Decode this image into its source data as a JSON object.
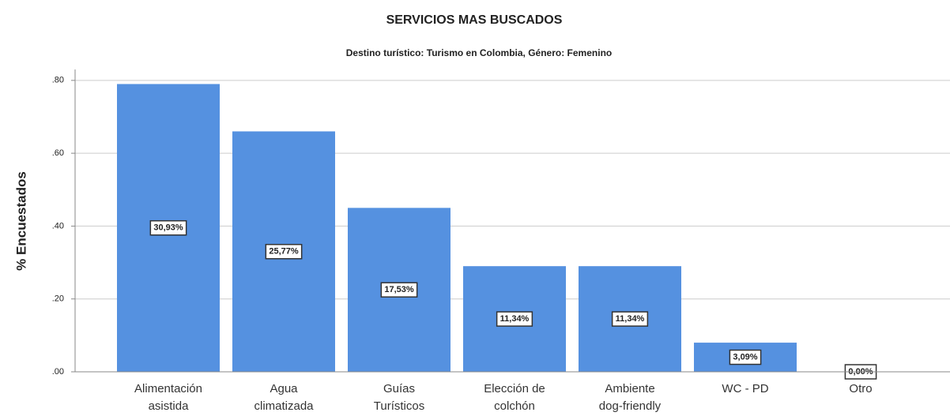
{
  "chart_data": {
    "type": "bar",
    "title": "SERVICIOS MAS BUSCADOS",
    "subtitle": "Destino turístico: Turismo en Colombia, Género: Femenino",
    "y_label": "% Encuestados",
    "categories": [
      [
        "Alimentación",
        "asistida"
      ],
      [
        "Agua",
        "climatizada"
      ],
      [
        "Guías",
        "Turísticos"
      ],
      [
        "Elección de",
        "colchón"
      ],
      [
        "Ambiente",
        "dog-friendly"
      ],
      [
        "WC - PD"
      ],
      [
        "Otro"
      ]
    ],
    "values": [
      0.79,
      0.66,
      0.45,
      0.29,
      0.29,
      0.08,
      0
    ],
    "annotations": [
      "30,93%",
      "25,77%",
      "17,53%",
      "11,34%",
      "11,34%",
      "3,09%",
      "0,00%"
    ],
    "color": "#5591e0",
    "ylim": [
      0,
      0.83
    ],
    "yticks": [
      {
        "value": 0,
        "label": ".00"
      },
      {
        "value": 0.2,
        "label": ".20"
      },
      {
        "value": 0.4,
        "label": ".40"
      },
      {
        "value": 0.6,
        "label": ".60"
      },
      {
        "value": 0.8,
        "label": ".80"
      }
    ],
    "grid": true
  }
}
